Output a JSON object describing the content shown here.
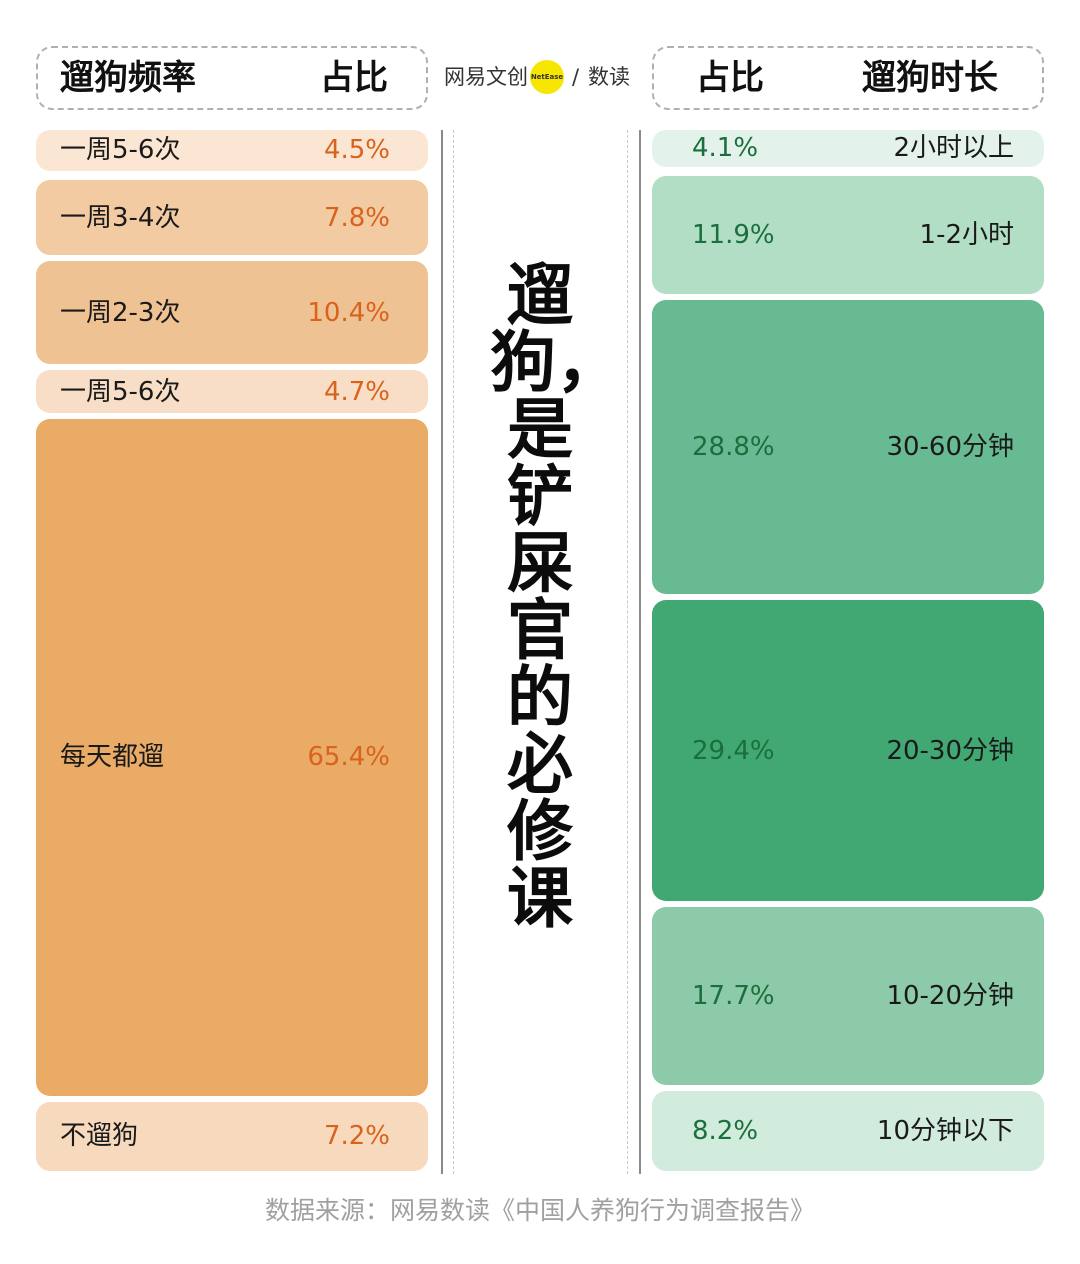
{
  "header": {
    "left_label": "遛狗频率",
    "left_value_label": "占比",
    "right_value_label": "占比",
    "right_label": "遛狗时长"
  },
  "logo": {
    "brand_left": "网易文创",
    "dot_text": "NetEase",
    "separator": "/",
    "brand_right": "数读"
  },
  "title": "遛狗，是铲屎官的必修课",
  "source": "数据来源：网易数读《中国人养狗行为调查报告》",
  "chart_data": [
    {
      "type": "bar",
      "subtype": "stacked-100-percent",
      "name": "遛狗频率",
      "value_header": "占比",
      "categories": [
        "一周5-6次",
        "一周3-4次",
        "一周2-3次",
        "一周5-6次",
        "每天都遛",
        "不遛狗"
      ],
      "display": [
        "4.5%",
        "7.8%",
        "10.4%",
        "4.7%",
        "65.4%",
        "7.2%"
      ],
      "values": [
        4.5,
        7.8,
        10.4,
        4.7,
        65.4,
        7.2
      ],
      "colors": [
        "#fbe6d4",
        "#f2cba3",
        "#efc293",
        "#f8dec6",
        "#eaab66",
        "#f7d9bd"
      ]
    },
    {
      "type": "bar",
      "subtype": "stacked-100-percent",
      "name": "遛狗时长",
      "value_header": "占比",
      "categories": [
        "2小时以上",
        "1-2小时",
        "30-60分钟",
        "20-30分钟",
        "10-20分钟",
        "10分钟以下"
      ],
      "display": [
        "4.1%",
        "11.9%",
        "28.8%",
        "29.4%",
        "17.7%",
        "8.2%"
      ],
      "values": [
        4.1,
        11.9,
        28.8,
        29.4,
        17.7,
        8.2
      ],
      "colors": [
        "#e3f2ea",
        "#b3dec6",
        "#68ba93",
        "#41a873",
        "#8ccaa9",
        "#d1ebdd"
      ]
    }
  ]
}
